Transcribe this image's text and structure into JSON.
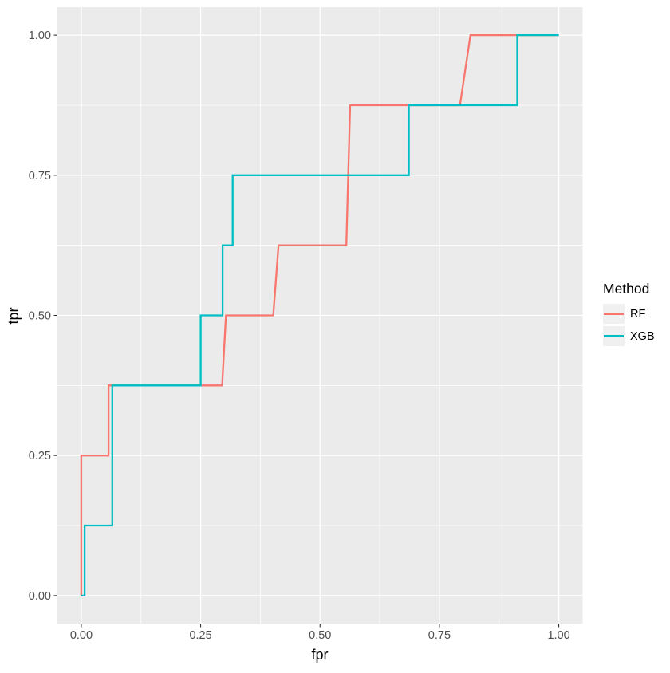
{
  "chart_data": {
    "type": "line",
    "subtype": "roc-step",
    "title": "",
    "xlabel": "fpr",
    "ylabel": "tpr",
    "xlim": [
      -0.05,
      1.05
    ],
    "ylim": [
      -0.05,
      1.05
    ],
    "grid": true,
    "legend_position": "right",
    "x_major_ticks": [
      0,
      0.25,
      0.5,
      0.75,
      1
    ],
    "x_tick_labels": [
      "0.00",
      "0.25",
      "0.50",
      "0.75",
      "1.00"
    ],
    "x_minor_ticks": [
      0.125,
      0.375,
      0.625,
      0.875
    ],
    "y_major_ticks": [
      0,
      0.25,
      0.5,
      0.75,
      1
    ],
    "y_tick_labels": [
      "0.00",
      "0.25",
      "0.50",
      "0.75",
      "1.00"
    ],
    "y_minor_ticks": [
      0.125,
      0.375,
      0.625,
      0.875
    ],
    "legend": {
      "title": "Method",
      "entries": [
        {
          "label": "RF",
          "color": "#F8766D"
        },
        {
          "label": "XGB",
          "color": "#00BFC4"
        }
      ]
    },
    "series": [
      {
        "name": "RF",
        "color": "#F8766D",
        "points": [
          [
            0,
            0
          ],
          [
            0,
            0.25
          ],
          [
            0.057,
            0.25
          ],
          [
            0.057,
            0.375
          ],
          [
            0.295,
            0.375
          ],
          [
            0.303,
            0.5
          ],
          [
            0.402,
            0.5
          ],
          [
            0.413,
            0.625
          ],
          [
            0.555,
            0.625
          ],
          [
            0.563,
            0.875
          ],
          [
            0.793,
            0.875
          ],
          [
            0.815,
            1
          ],
          [
            1,
            1
          ]
        ]
      },
      {
        "name": "XGB",
        "color": "#00BFC4",
        "points": [
          [
            0,
            0
          ],
          [
            0.007,
            0
          ],
          [
            0.007,
            0.125
          ],
          [
            0.065,
            0.125
          ],
          [
            0.065,
            0.375
          ],
          [
            0.25,
            0.375
          ],
          [
            0.25,
            0.5
          ],
          [
            0.296,
            0.5
          ],
          [
            0.296,
            0.625
          ],
          [
            0.317,
            0.625
          ],
          [
            0.317,
            0.75
          ],
          [
            0.686,
            0.75
          ],
          [
            0.686,
            0.875
          ],
          [
            0.913,
            0.875
          ],
          [
            0.913,
            1
          ],
          [
            1,
            1
          ]
        ]
      }
    ],
    "colors": {
      "panel_bg": "#EBEBEB",
      "grid": "#FFFFFF",
      "tick_mark": "#333333",
      "tick_text": "#4D4D4D",
      "axis_title": "#000000",
      "legend_key_bg": "#F0F0F0",
      "figure_bg": "#FFFFFF"
    },
    "layout": {
      "panel_left": 72,
      "panel_top": 9,
      "panel_right": 730.5,
      "panel_bottom": 782
    }
  }
}
